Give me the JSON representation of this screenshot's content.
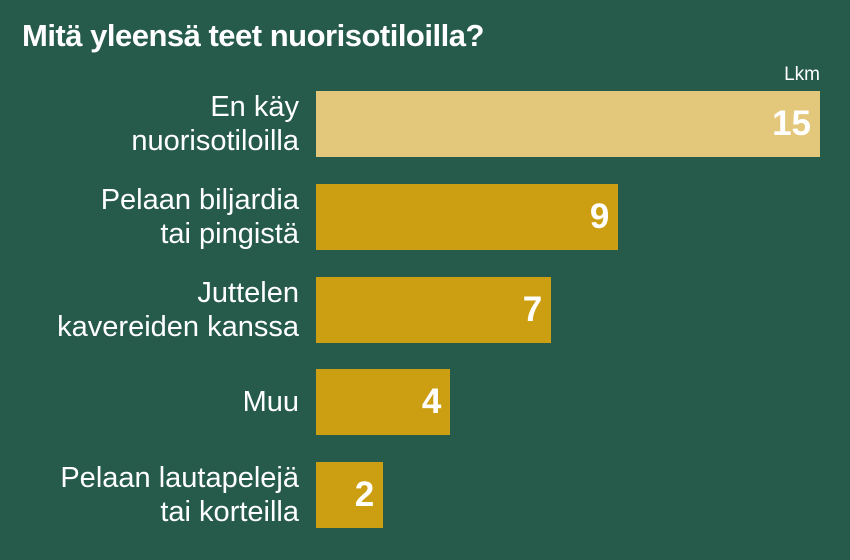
{
  "chart_data": {
    "type": "hbar",
    "title": "Mitä yleensä teet nuorisotiloilla?",
    "xlabel": "Lkm",
    "categories": [
      "En käy\nnuorisotiloilla",
      "Pelaan biljardia\ntai pingistä",
      "Juttelen\nkavereiden kanssa",
      "Muu",
      "Pelaan lautapelejä\ntai korteilla"
    ],
    "values": [
      15,
      9,
      7,
      4,
      2
    ],
    "colors": [
      "#e3c77a",
      "#cc9f12",
      "#cc9f12",
      "#cc9f12",
      "#cc9f12"
    ],
    "xlim": [
      0,
      15
    ]
  }
}
